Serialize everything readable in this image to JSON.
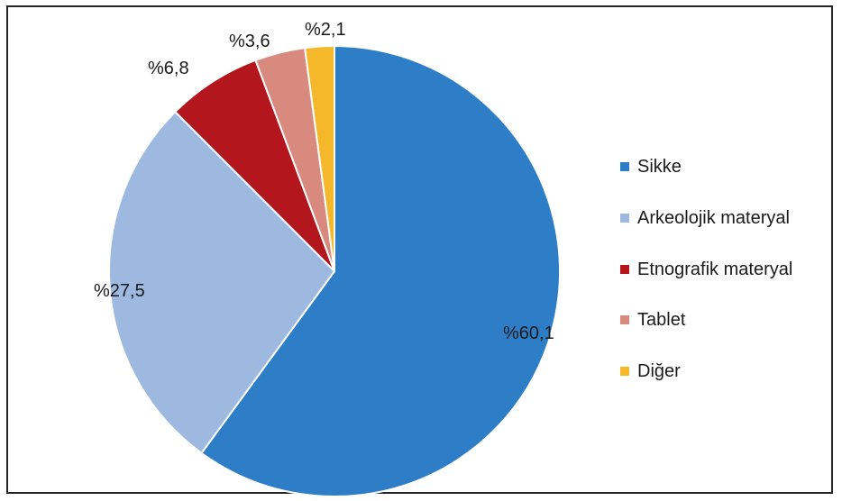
{
  "chart_data": {
    "type": "pie",
    "title": "",
    "slices": [
      {
        "label": "Sikke",
        "value": 60.1,
        "display": "%60,1",
        "color": "#2e7ec7"
      },
      {
        "label": "Arkeolojik materyal",
        "value": 27.5,
        "display": "%27,5",
        "color": "#9db9df"
      },
      {
        "label": "Etnografik materyal",
        "value": 6.8,
        "display": "%6,8",
        "color": "#b3161c"
      },
      {
        "label": "Tablet",
        "value": 3.6,
        "display": "%3,6",
        "color": "#d98a7e"
      },
      {
        "label": "Diğer",
        "value": 2.1,
        "display": "%2,1",
        "color": "#f5b82b"
      }
    ],
    "legend_position": "right"
  }
}
